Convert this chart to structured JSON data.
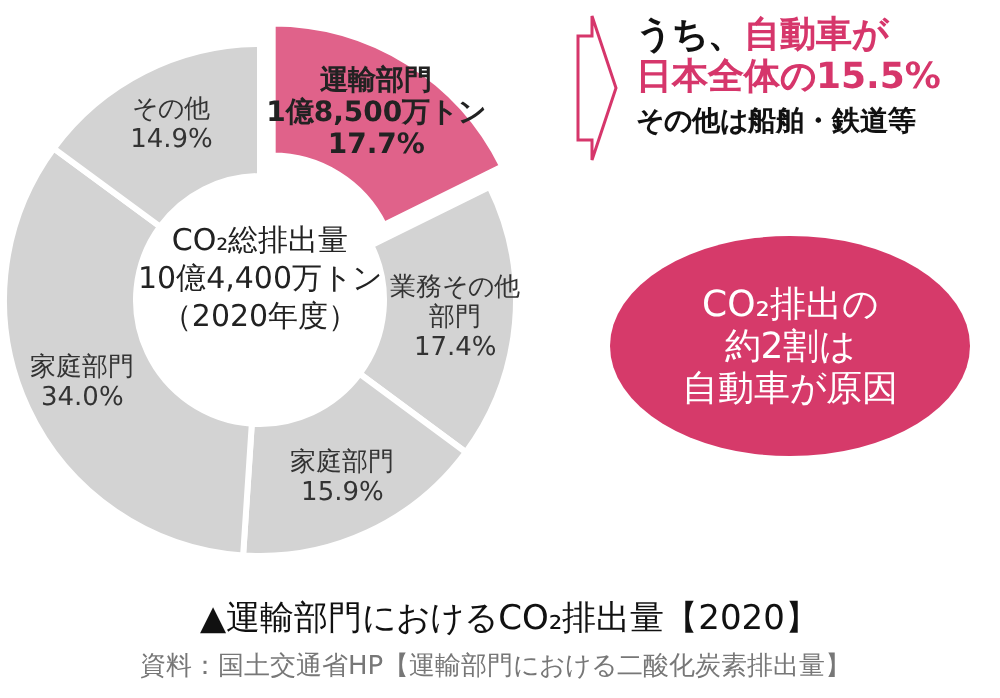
{
  "chart_data": {
    "type": "donut",
    "title": "▲運輸部門におけるCO₂排出量【2020】",
    "categories": [
      "運輸部門",
      "業務その他部門",
      "家庭部門",
      "家庭部門",
      "その他"
    ],
    "values": [
      17.7,
      17.4,
      15.9,
      34.0,
      14.9
    ],
    "colors": [
      "#e0628a",
      "#d3d3d3",
      "#d3d3d3",
      "#d3d3d3",
      "#d3d3d3"
    ],
    "value_labels": [
      "1億8,500万トン\n17.7%",
      "17.4%",
      "15.9%",
      "34.0%",
      "14.9%"
    ],
    "annotations": [
      "CO₂総排出量",
      "10億4,400万トン",
      "（2020年度）",
      "うち、",
      "自動車が",
      "日本全体の15.5%",
      "その他は船舶・鉄道等",
      "CO₂排出の",
      "約2割は",
      "自動車が原因",
      "資料：国土交通省HP【運輸部門における二酸化炭素排出量】"
    ]
  }
}
